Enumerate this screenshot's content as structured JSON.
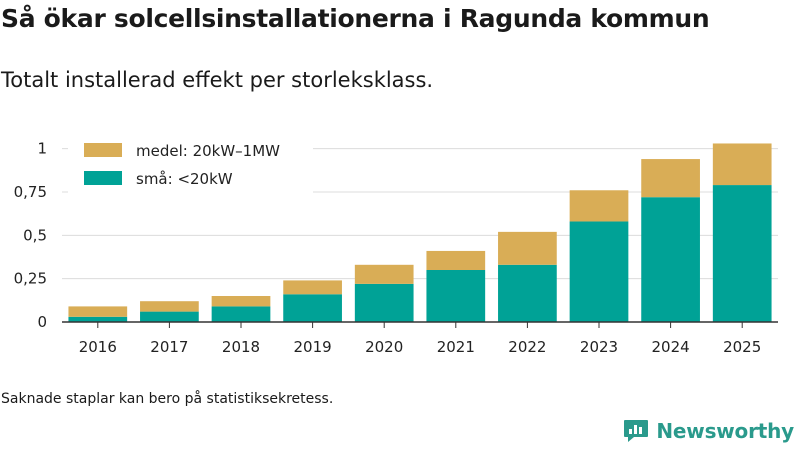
{
  "title": "Så ökar solcellsinstallationerna i Ragunda kommun",
  "subtitle": "Totalt installerad effekt per storleksklass.",
  "note": "Saknade staplar kan bero på statistiksekretess.",
  "brand": {
    "name": "Newsworthy",
    "icon": "newsworthy-logo-icon"
  },
  "colors": {
    "small": "#00a296",
    "medium": "#d9ad56",
    "grid": "#dcdcdc",
    "axis": "#333333"
  },
  "chart_data": {
    "type": "bar",
    "stacked": true,
    "title": "Så ökar solcellsinstallationerna i Ragunda kommun",
    "subtitle": "Totalt installerad effekt per storleksklass.",
    "xlabel": "",
    "ylabel": "",
    "ylim": [
      0,
      1.05
    ],
    "yticks": [
      0,
      0.25,
      0.5,
      0.75,
      1
    ],
    "ytick_labels": [
      "0",
      "0,25",
      "0,5",
      "0,75",
      "1"
    ],
    "grid": true,
    "legend_position": "top-left",
    "categories": [
      "2016",
      "2017",
      "2018",
      "2019",
      "2020",
      "2021",
      "2022",
      "2023",
      "2024",
      "2025"
    ],
    "series": [
      {
        "name": "små: <20kW",
        "color": "#00a296",
        "values": [
          0.03,
          0.06,
          0.09,
          0.16,
          0.22,
          0.3,
          0.33,
          0.58,
          0.72,
          0.79
        ]
      },
      {
        "name": "medel: 20kW–1MW",
        "color": "#d9ad56",
        "values": [
          0.06,
          0.06,
          0.06,
          0.08,
          0.11,
          0.11,
          0.19,
          0.18,
          0.22,
          0.24
        ]
      }
    ],
    "legend": [
      "medel: 20kW–1MW",
      "små: <20kW"
    ]
  }
}
